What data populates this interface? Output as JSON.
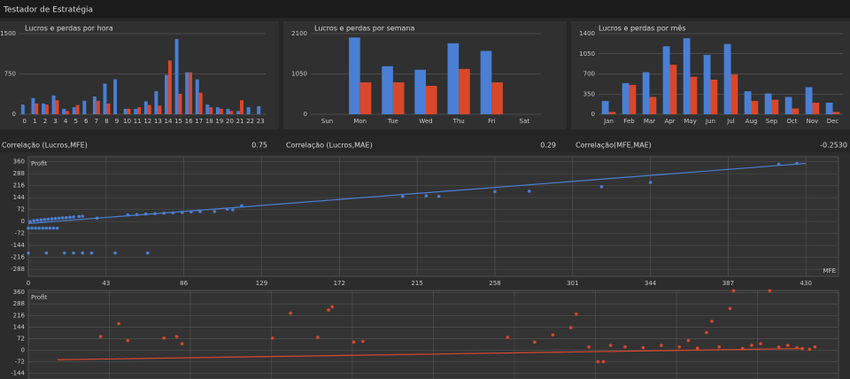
{
  "window_title": "Testador de Estratégia",
  "chart_data": [
    {
      "type": "bar",
      "title": "Lucros e perdas por hora",
      "categories": [
        "0",
        "1",
        "2",
        "3",
        "4",
        "5",
        "6",
        "7",
        "8",
        "9",
        "10",
        "11",
        "12",
        "13",
        "14",
        "15",
        "16",
        "17",
        "18",
        "19",
        "20",
        "21",
        "22",
        "23"
      ],
      "series": [
        {
          "color": "#4a7fd4",
          "values": [
            180,
            300,
            200,
            350,
            100,
            130,
            250,
            330,
            570,
            650,
            100,
            100,
            240,
            430,
            730,
            1400,
            780,
            650,
            180,
            130,
            100,
            60,
            130,
            150
          ]
        },
        {
          "color": "#d9472b",
          "values": [
            0,
            200,
            180,
            260,
            60,
            170,
            0,
            250,
            200,
            0,
            100,
            130,
            170,
            160,
            1000,
            380,
            780,
            400,
            130,
            100,
            60,
            260,
            0,
            0
          ]
        }
      ],
      "ylim": [
        0,
        1500
      ],
      "yticks": [
        0,
        750,
        1500
      ],
      "grid": true
    },
    {
      "type": "bar",
      "title": "Lucros e perdas por semana",
      "categories": [
        "Sun",
        "Mon",
        "Tue",
        "Wed",
        "Thu",
        "Fri",
        "Sat"
      ],
      "series": [
        {
          "color": "#4a7fd4",
          "values": [
            0,
            2000,
            1250,
            1160,
            1850,
            1650,
            0
          ]
        },
        {
          "color": "#d9472b",
          "values": [
            0,
            830,
            830,
            740,
            1180,
            830,
            0
          ]
        }
      ],
      "ylim": [
        0,
        2100
      ],
      "yticks": [
        0,
        1050,
        2100
      ],
      "grid": true
    },
    {
      "type": "bar",
      "title": "Lucros e perdas por mês",
      "categories": [
        "Jan",
        "Feb",
        "Mar",
        "Apr",
        "May",
        "Jun",
        "Jul",
        "Aug",
        "Sep",
        "Oct",
        "Nov",
        "Dec"
      ],
      "series": [
        {
          "color": "#4a7fd4",
          "values": [
            230,
            540,
            730,
            1180,
            1320,
            1030,
            1220,
            400,
            360,
            300,
            470,
            200
          ]
        },
        {
          "color": "#d9472b",
          "values": [
            40,
            510,
            300,
            860,
            650,
            600,
            690,
            230,
            250,
            100,
            200,
            40
          ]
        }
      ],
      "ylim": [
        0,
        1400
      ],
      "yticks": [
        0,
        350,
        700,
        1050,
        1400
      ],
      "grid": true
    },
    {
      "type": "scatter",
      "y_label": "Profit",
      "x_label": "MFE",
      "series": [
        {
          "kind": "points",
          "color": "#4a7fd4",
          "x": [
            0,
            2,
            4,
            6,
            8,
            10,
            12,
            14,
            16,
            0,
            10,
            20,
            25,
            30,
            35,
            48,
            66,
            1,
            3,
            5,
            7,
            9,
            11,
            13,
            15,
            17,
            19,
            21,
            23,
            25,
            28,
            30,
            38,
            55,
            60,
            65,
            70,
            75,
            80,
            85,
            90,
            95,
            103,
            110,
            113,
            118,
            207,
            220,
            227,
            258,
            277,
            317,
            344,
            415,
            425
          ],
          "values": [
            -40,
            -40,
            -40,
            -40,
            -40,
            -40,
            -40,
            -40,
            -40,
            -190,
            -190,
            -190,
            -190,
            -190,
            -190,
            -190,
            -190,
            0,
            5,
            8,
            10,
            12,
            14,
            16,
            18,
            20,
            22,
            23,
            25,
            27,
            30,
            32,
            20,
            40,
            42,
            45,
            47,
            50,
            52,
            55,
            58,
            60,
            60,
            75,
            70,
            95,
            150,
            155,
            152,
            180,
            182,
            210,
            235,
            345,
            350
          ]
        },
        {
          "kind": "line",
          "color": "#4a7fd4",
          "x": [
            0,
            430
          ],
          "values": [
            -12,
            350
          ]
        }
      ],
      "xlim": [
        0,
        448
      ],
      "ylim": [
        -330,
        390
      ],
      "xticks": [
        0,
        43,
        86,
        129,
        172,
        215,
        258,
        301,
        344,
        387,
        430
      ],
      "yticks": [
        360,
        288,
        216,
        144,
        72,
        0,
        -72,
        -144,
        -216,
        -288
      ],
      "grid": true
    },
    {
      "type": "scatter",
      "y_label": "Profit",
      "series": [
        {
          "kind": "points",
          "color": "#d9472b",
          "x": [
            40,
            50,
            55,
            75,
            82,
            85,
            135,
            145,
            160,
            166,
            168,
            180,
            185,
            265,
            280,
            290,
            300,
            303,
            310,
            315,
            318,
            322,
            330,
            340,
            350,
            360,
            365,
            370,
            375,
            378,
            382,
            388,
            390,
            395,
            400,
            405,
            410,
            415,
            420,
            425,
            428,
            432,
            435
          ],
          "values": [
            85,
            165,
            60,
            75,
            85,
            40,
            75,
            230,
            80,
            250,
            270,
            50,
            55,
            80,
            50,
            95,
            140,
            225,
            20,
            -72,
            -72,
            30,
            20,
            15,
            30,
            20,
            60,
            12,
            110,
            180,
            20,
            260,
            370,
            10,
            30,
            40,
            370,
            20,
            30,
            15,
            10,
            5,
            20
          ]
        },
        {
          "kind": "line",
          "color": "#d9472b",
          "x": [
            16,
            428
          ],
          "values": [
            -60,
            10
          ]
        }
      ],
      "xlim": [
        0,
        448
      ],
      "ylim": [
        -180,
        372
      ],
      "yticks": [
        360,
        288,
        216,
        144,
        72,
        0,
        -72,
        -144
      ],
      "grid": true
    }
  ],
  "correlations": [
    {
      "label": "Correlação (Lucros,MFE)",
      "value": "0.75"
    },
    {
      "label": "Correlação (Lucros,MAE)",
      "value": "0.29"
    },
    {
      "label": "Correlação(MFE,MAE)",
      "value": "-0.2530"
    }
  ]
}
